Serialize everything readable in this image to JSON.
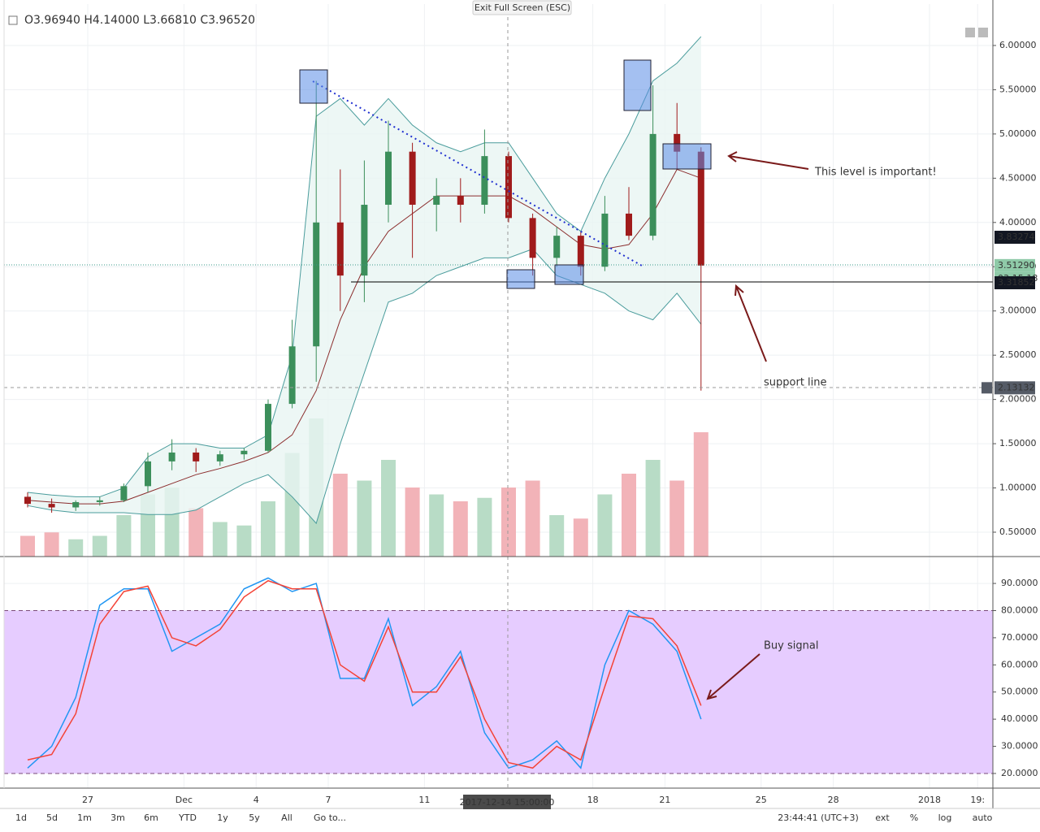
{
  "ui": {
    "ohlc": "O3.96940  H4.14000  L3.66810  C3.96520",
    "exit_button": "Exit Full Screen (ESC)",
    "crosshair_label": "2017-12-14 15:00:00",
    "ranges": [
      "1d",
      "5d",
      "1m",
      "3m",
      "6m",
      "YTD",
      "1y",
      "5y",
      "All",
      "Go to..."
    ],
    "clock": "23:44:41 (UTC+3)",
    "options": [
      "ext",
      "%",
      "log",
      "auto"
    ]
  },
  "chart_data": [
    {
      "type": "candlestick",
      "categories": [
        null,
        null,
        null,
        "27",
        null,
        null,
        null,
        "Dec",
        null,
        null,
        "4",
        null,
        null,
        "7",
        null,
        null,
        null,
        "11",
        null,
        null,
        null,
        null,
        null,
        null,
        "18",
        null,
        null,
        "21",
        null,
        null,
        null,
        "25",
        null,
        null,
        "28",
        null,
        null,
        null,
        "2018",
        null,
        "19:"
      ],
      "open": [
        0.9,
        0.82,
        0.78,
        0.84,
        0.86,
        1.02,
        1.3,
        1.4,
        1.3,
        1.38,
        1.42,
        1.95,
        2.6,
        4.0,
        3.4,
        4.2,
        4.8,
        4.2,
        4.3,
        4.2,
        4.75,
        4.05,
        3.6,
        3.85,
        3.5,
        4.1,
        3.85,
        5.0,
        4.8,
        null,
        null,
        null,
        null,
        null,
        null,
        null,
        null,
        null,
        null,
        null,
        null
      ],
      "high": [
        0.95,
        0.88,
        0.86,
        0.9,
        1.05,
        1.4,
        1.55,
        1.45,
        1.42,
        1.45,
        2.0,
        2.9,
        5.6,
        4.6,
        4.7,
        5.15,
        4.9,
        4.5,
        4.5,
        5.05,
        4.8,
        4.1,
        3.95,
        3.9,
        4.3,
        4.4,
        5.55,
        5.35,
        4.85,
        null,
        null,
        null,
        null,
        null,
        null,
        null,
        null,
        null,
        null,
        null,
        null
      ],
      "low": [
        0.78,
        0.72,
        0.74,
        0.8,
        0.84,
        0.95,
        1.2,
        1.18,
        1.25,
        1.32,
        1.4,
        1.9,
        2.2,
        3.0,
        3.1,
        4.0,
        3.6,
        3.9,
        4.0,
        4.1,
        4.0,
        3.4,
        3.5,
        3.4,
        3.45,
        3.8,
        3.8,
        4.6,
        2.1,
        null,
        null,
        null,
        null,
        null,
        null,
        null,
        null,
        null,
        null,
        null,
        null
      ],
      "close": [
        0.82,
        0.78,
        0.84,
        0.86,
        1.02,
        1.3,
        1.4,
        1.3,
        1.38,
        1.42,
        1.95,
        2.6,
        4.0,
        3.4,
        4.2,
        4.8,
        4.2,
        4.3,
        4.2,
        4.75,
        4.05,
        3.6,
        3.85,
        3.5,
        4.1,
        3.85,
        5.0,
        4.8,
        3.5129,
        null,
        null,
        null,
        null,
        null,
        null,
        null,
        null,
        null,
        null,
        null,
        null
      ],
      "volume": [
        30,
        35,
        25,
        30,
        60,
        90,
        100,
        70,
        50,
        45,
        80,
        150,
        200,
        120,
        110,
        140,
        100,
        90,
        80,
        85,
        100,
        110,
        60,
        55,
        90,
        120,
        140,
        110,
        180,
        null,
        null,
        null,
        null,
        null,
        null,
        null,
        null,
        null,
        null,
        null,
        null
      ],
      "y2lim": [
        0,
        800
      ],
      "bands": {
        "upper": [
          0.95,
          0.92,
          0.9,
          0.9,
          1.0,
          1.35,
          1.5,
          1.5,
          1.45,
          1.45,
          1.6,
          2.5,
          5.2,
          5.4,
          5.1,
          5.4,
          5.1,
          4.9,
          4.8,
          4.9,
          4.9,
          4.5,
          4.1,
          3.9,
          4.5,
          5.0,
          5.6,
          5.8,
          6.1,
          null,
          null,
          null,
          null,
          null,
          null,
          null,
          null,
          null,
          null,
          null,
          null
        ],
        "middle": [
          0.86,
          0.84,
          0.82,
          0.82,
          0.85,
          0.95,
          1.05,
          1.15,
          1.22,
          1.3,
          1.4,
          1.6,
          2.1,
          2.9,
          3.5,
          3.9,
          4.1,
          4.3,
          4.3,
          4.3,
          4.3,
          4.15,
          3.95,
          3.75,
          3.7,
          3.75,
          4.1,
          4.6,
          4.5,
          null,
          null,
          null,
          null,
          null,
          null,
          null,
          null,
          null,
          null,
          null,
          null
        ],
        "lower": [
          0.8,
          0.75,
          0.72,
          0.72,
          0.72,
          0.7,
          0.7,
          0.75,
          0.9,
          1.05,
          1.15,
          0.9,
          0.6,
          1.5,
          2.3,
          3.1,
          3.2,
          3.4,
          3.5,
          3.6,
          3.6,
          3.7,
          3.4,
          3.3,
          3.2,
          3.0,
          2.9,
          3.2,
          2.85,
          null,
          null,
          null,
          null,
          null,
          null,
          null,
          null,
          null,
          null,
          null,
          null
        ],
        "color": "#4a9c9c",
        "middle_color": "#8b2d2d",
        "fill": "#e9f5f2"
      },
      "up_color": "#3c8f5b",
      "down_color": "#a01b1b",
      "volume_up_color": "#b8dcc6",
      "volume_down_color": "#f2b3b8",
      "ylim": [
        0.2245,
        6.468
      ],
      "yticks": [
        {
          "value": 0.5,
          "label": "0.50000"
        },
        {
          "value": 1,
          "label": "1.00000"
        },
        {
          "value": 1.5,
          "label": "1.50000"
        },
        {
          "value": 2,
          "label": "2.00000"
        },
        {
          "value": 2.5,
          "label": "2.50000"
        },
        {
          "value": 3,
          "label": "3.00000"
        },
        {
          "value": 3.5,
          "label": "3.50000"
        },
        {
          "value": 4,
          "label": "4.00000"
        },
        {
          "value": 4.5,
          "label": "4.50000"
        },
        {
          "value": 5,
          "label": "5.00000"
        },
        {
          "value": 5.5,
          "label": "5.50000"
        },
        {
          "value": 6,
          "label": "6.00000"
        }
      ],
      "grid": true,
      "price_markers": [
        3.83274,
        {
          "value": 3.5129,
          "label": "3.51290"
        },
        3.31852,
        2.13132
      ],
      "marker_colors": [
        "#131722",
        "#8fcaa8",
        "#131722",
        "#555b66"
      ],
      "countdown": "03:15:18",
      "annotations": [
        "This level is important!",
        "support line"
      ]
    },
    {
      "type": "line",
      "series": [
        {
          "color": "#2196f3",
          "values": [
            22,
            30,
            48,
            82,
            88,
            88,
            65,
            70,
            75,
            88,
            92,
            87,
            90,
            55,
            55,
            77,
            45,
            52,
            65,
            35,
            22,
            25,
            32,
            22,
            60,
            80,
            75,
            65,
            40
          ]
        },
        {
          "color": "#f44336",
          "values": [
            25,
            27,
            42,
            75,
            87,
            89,
            70,
            67,
            73,
            85,
            91,
            88,
            88,
            60,
            54,
            74,
            50,
            50,
            63,
            40,
            24,
            22,
            30,
            25,
            52,
            78,
            77,
            67,
            45
          ]
        }
      ],
      "ylim": [
        14.6,
        99.9
      ],
      "yticks": [
        {
          "value": 20,
          "label": "20.0000"
        },
        {
          "value": 30,
          "label": "30.0000"
        },
        {
          "value": 40,
          "label": "40.0000"
        },
        {
          "value": 50,
          "label": "50.0000"
        },
        {
          "value": 60,
          "label": "60.0000"
        },
        {
          "value": 70,
          "label": "70.0000"
        },
        {
          "value": 80,
          "label": "80.0000"
        },
        {
          "value": 90,
          "label": "90.0000"
        }
      ],
      "bands": [
        20,
        80
      ],
      "band_fill": "#e6ccff",
      "grid": true,
      "annotations": [
        "Buy signal"
      ]
    }
  ]
}
